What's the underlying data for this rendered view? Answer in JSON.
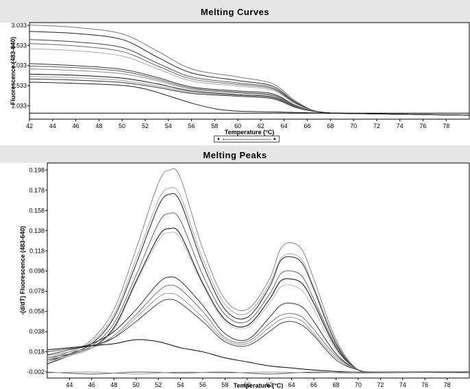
{
  "chart_data": [
    {
      "type": "line",
      "title": "Melting Curves",
      "xlabel": "Temperature (°C)",
      "ylabel": "Fluorescence (483-640)",
      "xlim": [
        42,
        80
      ],
      "ylim": [
        0.7,
        3.1
      ],
      "xticks": [
        "42",
        "44",
        "46",
        "48",
        "50",
        "52",
        "54",
        "56",
        "58",
        "60",
        "62",
        "64",
        "66",
        "68",
        "70",
        "72",
        "74",
        "76",
        "78"
      ],
      "yticks": [
        "3.033",
        "2.533",
        "2.033",
        "1.533",
        "1.033"
      ],
      "grid": false,
      "series": [
        {
          "color": "#777777",
          "x": [
            42,
            46,
            50,
            53,
            56,
            60,
            63,
            65,
            67,
            70,
            80
          ],
          "y": [
            3.04,
            2.98,
            2.82,
            2.4,
            1.95,
            1.75,
            1.58,
            1.15,
            0.88,
            0.84,
            0.8
          ]
        },
        {
          "color": "#222222",
          "x": [
            42,
            46,
            50,
            53,
            56,
            60,
            63,
            65,
            67,
            70,
            80
          ],
          "y": [
            2.88,
            2.83,
            2.68,
            2.25,
            1.85,
            1.66,
            1.52,
            1.12,
            0.88,
            0.84,
            0.8
          ]
        },
        {
          "color": "#444444",
          "x": [
            42,
            46,
            50,
            53,
            56,
            60,
            63,
            65,
            67,
            70,
            80
          ],
          "y": [
            2.68,
            2.62,
            2.48,
            2.1,
            1.75,
            1.6,
            1.48,
            1.1,
            0.88,
            0.84,
            0.8
          ]
        },
        {
          "color": "#666666",
          "x": [
            42,
            46,
            50,
            53,
            56,
            60,
            63,
            65,
            67,
            70,
            80
          ],
          "y": [
            2.58,
            2.52,
            2.38,
            2.03,
            1.7,
            1.56,
            1.45,
            1.09,
            0.88,
            0.84,
            0.8
          ]
        },
        {
          "color": "#aaaaaa",
          "x": [
            42,
            46,
            50,
            53,
            56,
            60,
            63,
            65,
            67,
            70,
            80
          ],
          "y": [
            2.45,
            2.4,
            2.27,
            1.96,
            1.65,
            1.52,
            1.42,
            1.08,
            0.88,
            0.84,
            0.8
          ]
        },
        {
          "color": "#333333",
          "x": [
            42,
            46,
            50,
            53,
            56,
            60,
            63,
            65,
            67,
            70,
            80
          ],
          "y": [
            2.08,
            2.03,
            1.94,
            1.74,
            1.5,
            1.4,
            1.33,
            1.04,
            0.88,
            0.84,
            0.8
          ]
        },
        {
          "color": "#555555",
          "x": [
            42,
            46,
            50,
            53,
            56,
            60,
            63,
            65,
            67,
            70,
            80
          ],
          "y": [
            2.02,
            1.98,
            1.89,
            1.7,
            1.47,
            1.37,
            1.3,
            1.03,
            0.88,
            0.84,
            0.8
          ]
        },
        {
          "color": "#888888",
          "x": [
            42,
            46,
            50,
            53,
            56,
            60,
            63,
            65,
            67,
            70,
            80
          ],
          "y": [
            1.95,
            1.91,
            1.83,
            1.66,
            1.44,
            1.35,
            1.28,
            1.02,
            0.88,
            0.84,
            0.8
          ]
        },
        {
          "color": "#111111",
          "x": [
            42,
            46,
            50,
            53,
            56,
            60,
            63,
            65,
            67,
            70,
            80
          ],
          "y": [
            1.82,
            1.79,
            1.72,
            1.58,
            1.4,
            1.31,
            1.25,
            1.01,
            0.88,
            0.84,
            0.8
          ]
        },
        {
          "color": "#999999",
          "x": [
            42,
            46,
            50,
            53,
            56,
            60,
            63,
            65,
            67,
            70,
            80
          ],
          "y": [
            1.76,
            1.73,
            1.66,
            1.53,
            1.37,
            1.29,
            1.23,
            1.0,
            0.88,
            0.84,
            0.8
          ]
        },
        {
          "color": "#333333",
          "x": [
            42,
            46,
            50,
            53,
            56,
            60,
            63,
            65,
            67,
            70,
            80
          ],
          "y": [
            1.7,
            1.67,
            1.61,
            1.49,
            1.34,
            1.27,
            1.21,
            0.99,
            0.88,
            0.84,
            0.8
          ]
        },
        {
          "color": "#222222",
          "x": [
            42,
            46,
            50,
            52,
            54,
            56,
            58,
            60,
            63,
            66,
            70,
            80
          ],
          "y": [
            1.62,
            1.59,
            1.54,
            1.45,
            1.28,
            1.1,
            0.96,
            0.9,
            0.88,
            0.86,
            0.84,
            0.8
          ]
        },
        {
          "color": "#000000",
          "x": [
            42,
            60,
            80
          ],
          "y": [
            0.85,
            0.85,
            0.85
          ]
        }
      ]
    },
    {
      "type": "line",
      "title": "Melting Peaks",
      "xlabel": "Temperature (°C)",
      "ylabel": "-(d/dT) Fluorescence (483-640)",
      "xlim": [
        42,
        80
      ],
      "ylim": [
        -0.008,
        0.205
      ],
      "xticks": [
        "44",
        "46",
        "48",
        "50",
        "52",
        "54",
        "56",
        "58",
        "60",
        "62",
        "64",
        "66",
        "68",
        "70",
        "72",
        "74",
        "76",
        "78"
      ],
      "yticks": [
        "0.198",
        "0.178",
        "0.158",
        "0.138",
        "0.118",
        "0.098",
        "0.078",
        "0.058",
        "0.038",
        "0.018",
        "-0.002"
      ],
      "grid": false,
      "series": [
        {
          "color": "#888888",
          "x": [
            42,
            44,
            46,
            48,
            50,
            52,
            53,
            54,
            56,
            58,
            60,
            62,
            63,
            64,
            65,
            66,
            68,
            70,
            72,
            80
          ],
          "y": [
            0.01,
            0.018,
            0.03,
            0.06,
            0.12,
            0.185,
            0.198,
            0.19,
            0.12,
            0.07,
            0.06,
            0.09,
            0.12,
            0.126,
            0.118,
            0.09,
            0.03,
            0.0,
            -0.002,
            -0.002
          ]
        },
        {
          "color": "#aaaaaa",
          "x": [
            42,
            44,
            46,
            48,
            50,
            52,
            53,
            54,
            56,
            58,
            60,
            62,
            63,
            64,
            65,
            66,
            68,
            70,
            72,
            80
          ],
          "y": [
            0.012,
            0.018,
            0.028,
            0.055,
            0.11,
            0.168,
            0.18,
            0.172,
            0.11,
            0.065,
            0.056,
            0.085,
            0.11,
            0.115,
            0.108,
            0.082,
            0.028,
            0.0,
            -0.002,
            -0.002
          ]
        },
        {
          "color": "#222222",
          "x": [
            42,
            44,
            46,
            48,
            50,
            52,
            53,
            54,
            56,
            58,
            60,
            62,
            63,
            64,
            65,
            66,
            68,
            70,
            72,
            80
          ],
          "y": [
            0.008,
            0.016,
            0.026,
            0.052,
            0.105,
            0.162,
            0.174,
            0.166,
            0.105,
            0.06,
            0.052,
            0.082,
            0.108,
            0.112,
            0.105,
            0.08,
            0.026,
            0.0,
            -0.002,
            -0.002
          ]
        },
        {
          "color": "#666666",
          "x": [
            42,
            44,
            46,
            48,
            50,
            52,
            53,
            54,
            56,
            58,
            60,
            62,
            63,
            64,
            65,
            66,
            68,
            70,
            72,
            80
          ],
          "y": [
            0.01,
            0.015,
            0.024,
            0.046,
            0.094,
            0.145,
            0.155,
            0.148,
            0.094,
            0.055,
            0.048,
            0.075,
            0.095,
            0.098,
            0.092,
            0.07,
            0.024,
            0.0,
            -0.002,
            -0.002
          ]
        },
        {
          "color": "#000000",
          "x": [
            42,
            44,
            46,
            48,
            50,
            52,
            53,
            54,
            56,
            58,
            60,
            62,
            63,
            64,
            65,
            66,
            68,
            70,
            72,
            80
          ],
          "y": [
            0.006,
            0.014,
            0.022,
            0.042,
            0.088,
            0.132,
            0.14,
            0.134,
            0.086,
            0.05,
            0.044,
            0.07,
            0.088,
            0.09,
            0.085,
            0.066,
            0.022,
            0.0,
            -0.002,
            -0.002
          ]
        },
        {
          "color": "#bbbbbb",
          "x": [
            42,
            44,
            46,
            48,
            50,
            52,
            53,
            54,
            56,
            58,
            60,
            62,
            63,
            64,
            65,
            66,
            68,
            70,
            72,
            80
          ],
          "y": [
            0.008,
            0.014,
            0.022,
            0.04,
            0.086,
            0.128,
            0.136,
            0.13,
            0.084,
            0.048,
            0.042,
            0.066,
            0.082,
            0.084,
            0.078,
            0.06,
            0.02,
            0.0,
            -0.002,
            -0.002
          ]
        },
        {
          "color": "#333333",
          "x": [
            42,
            44,
            46,
            48,
            50,
            52,
            53,
            54,
            56,
            58,
            60,
            62,
            63,
            64,
            65,
            66,
            68,
            70,
            72,
            80
          ],
          "y": [
            0.015,
            0.02,
            0.026,
            0.038,
            0.06,
            0.086,
            0.092,
            0.088,
            0.064,
            0.036,
            0.03,
            0.052,
            0.064,
            0.066,
            0.062,
            0.048,
            0.016,
            0.0,
            -0.002,
            -0.002
          ]
        },
        {
          "color": "#777777",
          "x": [
            42,
            44,
            46,
            48,
            50,
            52,
            53,
            54,
            56,
            58,
            60,
            62,
            63,
            64,
            65,
            66,
            68,
            70,
            72,
            80
          ],
          "y": [
            0.012,
            0.016,
            0.022,
            0.034,
            0.055,
            0.078,
            0.084,
            0.08,
            0.058,
            0.032,
            0.028,
            0.046,
            0.054,
            0.056,
            0.052,
            0.04,
            0.014,
            0.0,
            -0.002,
            -0.002
          ]
        },
        {
          "color": "#999999",
          "x": [
            42,
            44,
            46,
            48,
            50,
            52,
            53,
            54,
            56,
            58,
            60,
            62,
            63,
            64,
            65,
            66,
            68,
            70,
            72,
            80
          ],
          "y": [
            0.014,
            0.018,
            0.022,
            0.032,
            0.052,
            0.072,
            0.076,
            0.072,
            0.052,
            0.03,
            0.026,
            0.042,
            0.05,
            0.052,
            0.048,
            0.036,
            0.012,
            0.0,
            -0.002,
            -0.002
          ]
        },
        {
          "color": "#444444",
          "x": [
            42,
            44,
            46,
            48,
            50,
            52,
            53,
            54,
            56,
            58,
            60,
            62,
            63,
            64,
            65,
            66,
            68,
            70,
            72,
            80
          ],
          "y": [
            0.018,
            0.021,
            0.024,
            0.032,
            0.048,
            0.066,
            0.07,
            0.066,
            0.048,
            0.028,
            0.024,
            0.038,
            0.046,
            0.048,
            0.044,
            0.034,
            0.01,
            0.0,
            -0.002,
            -0.002
          ]
        },
        {
          "color": "#000000",
          "x": [
            42,
            44,
            46,
            48,
            50,
            52,
            54,
            56,
            58,
            60,
            62,
            64,
            66,
            70,
            80
          ],
          "y": [
            0.02,
            0.022,
            0.024,
            0.026,
            0.03,
            0.028,
            0.022,
            0.018,
            0.012,
            0.008,
            0.004,
            0.002,
            0.0,
            -0.002,
            -0.002
          ]
        },
        {
          "color": "#555555",
          "x": [
            42,
            46,
            50,
            54,
            58,
            62,
            66,
            70,
            80
          ],
          "y": [
            -0.002,
            -0.004,
            -0.002,
            -0.003,
            -0.002,
            -0.004,
            -0.002,
            -0.003,
            -0.002
          ]
        },
        {
          "color": "#999999",
          "x": [
            42,
            46,
            50,
            54,
            58,
            62,
            66,
            70,
            80
          ],
          "y": [
            -0.003,
            -0.002,
            -0.004,
            -0.002,
            -0.003,
            -0.002,
            -0.003,
            -0.002,
            -0.003
          ]
        }
      ]
    }
  ]
}
